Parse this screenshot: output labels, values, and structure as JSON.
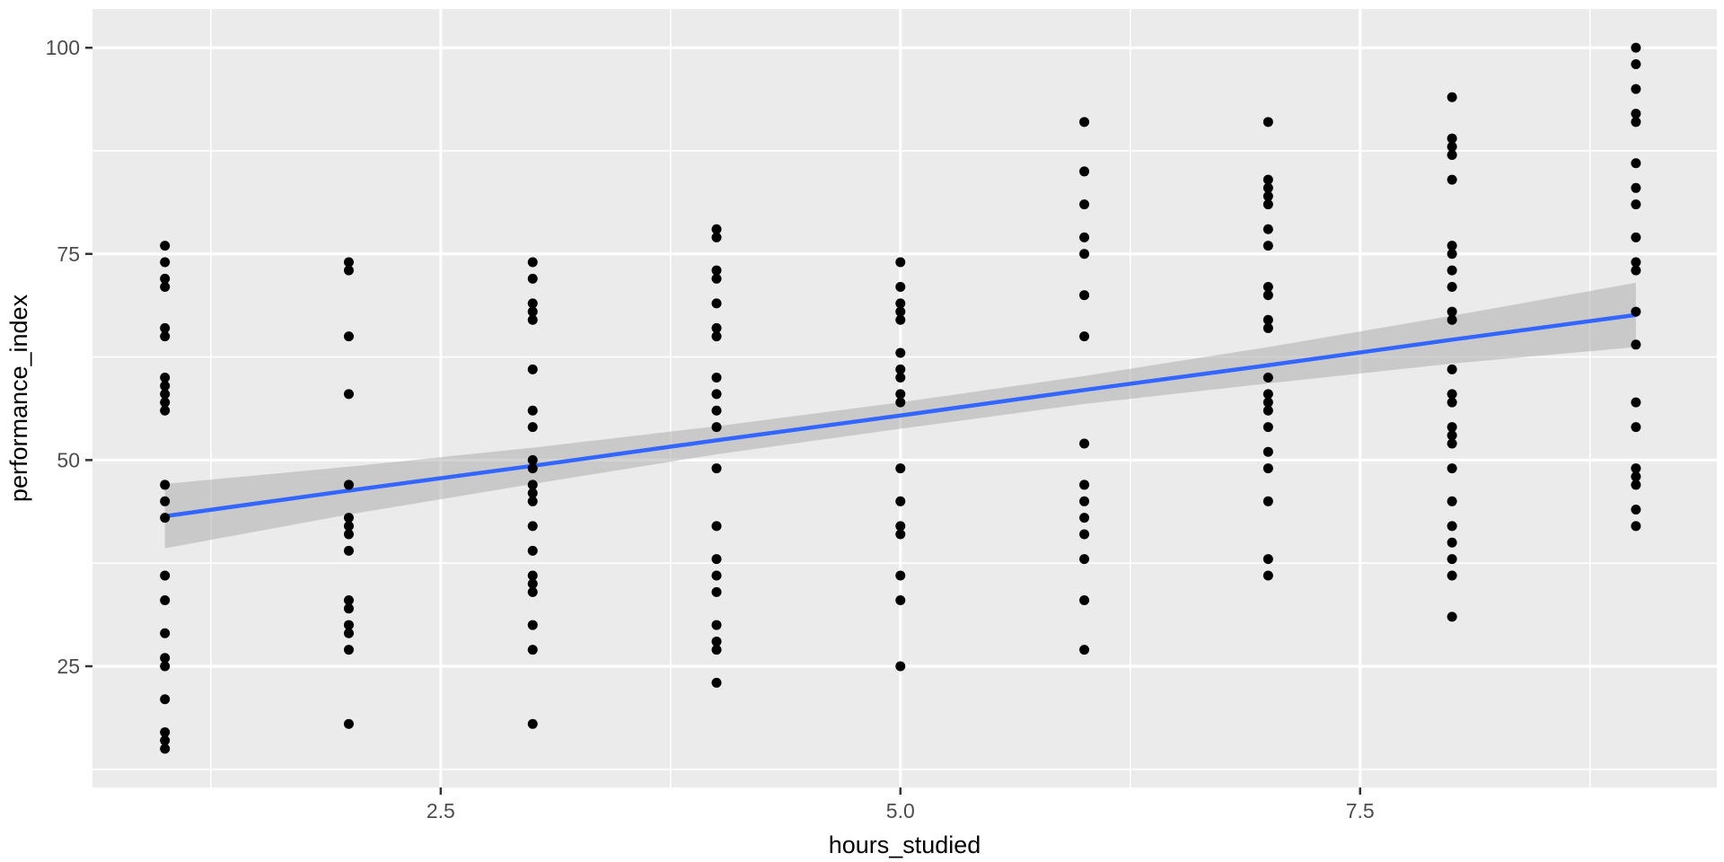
{
  "figure": {
    "kind": "ggplot-scatter-with-smooth",
    "background": "#FFFFFF"
  },
  "chart_data": {
    "type": "scatter",
    "title": "",
    "xlabel": "hours_studied",
    "ylabel": "performance_index",
    "xlim": [
      0.606,
      9.44
    ],
    "ylim": [
      10.3,
      104.7
    ],
    "x_major_ticks": [
      2.5,
      5.0,
      7.5
    ],
    "x_major_labels": [
      "2.5",
      "5.0",
      "7.5"
    ],
    "x_minor_ticks": [
      1.25,
      3.75,
      6.25,
      8.75
    ],
    "y_major_ticks": [
      25,
      50,
      75,
      100
    ],
    "y_major_labels": [
      "25",
      "50",
      "75",
      "100"
    ],
    "y_minor_ticks": [
      12.5,
      37.5,
      62.5,
      87.5
    ],
    "grid": "on",
    "legend": "none",
    "groups": [
      {
        "x": 1,
        "values": [
          76,
          74,
          72,
          71,
          66,
          65,
          60,
          59,
          58,
          57,
          56,
          47,
          45,
          43,
          36,
          33,
          29,
          26,
          25,
          21,
          17,
          16,
          15
        ]
      },
      {
        "x": 2,
        "values": [
          74,
          73,
          65,
          58,
          47,
          43,
          42,
          41,
          39,
          33,
          32,
          30,
          29,
          27,
          18
        ]
      },
      {
        "x": 3,
        "values": [
          74,
          72,
          69,
          68,
          67,
          61,
          56,
          54,
          50,
          49,
          47,
          46,
          45,
          42,
          39,
          36,
          35,
          34,
          30,
          27,
          18
        ]
      },
      {
        "x": 4,
        "values": [
          78,
          77,
          73,
          72,
          69,
          66,
          65,
          60,
          58,
          56,
          54,
          49,
          42,
          38,
          36,
          34,
          30,
          28,
          27,
          23
        ]
      },
      {
        "x": 5,
        "values": [
          74,
          71,
          69,
          68,
          67,
          63,
          61,
          60,
          58,
          57,
          49,
          45,
          42,
          41,
          36,
          33,
          25
        ]
      },
      {
        "x": 6,
        "values": [
          91,
          85,
          81,
          77,
          75,
          70,
          65,
          52,
          47,
          45,
          43,
          41,
          38,
          33,
          27
        ]
      },
      {
        "x": 7,
        "values": [
          91,
          84,
          83,
          82,
          81,
          78,
          76,
          71,
          70,
          67,
          66,
          60,
          58,
          57,
          56,
          54,
          51,
          49,
          45,
          38,
          36
        ]
      },
      {
        "x": 8,
        "values": [
          94,
          89,
          88,
          87,
          84,
          76,
          75,
          73,
          71,
          68,
          67,
          61,
          58,
          57,
          54,
          53,
          52,
          49,
          45,
          42,
          40,
          38,
          36,
          31
        ]
      },
      {
        "x": 9,
        "values": [
          100,
          98,
          95,
          92,
          91,
          86,
          83,
          81,
          77,
          74,
          73,
          68,
          64,
          57,
          54,
          49,
          48,
          47,
          44,
          42
        ]
      }
    ],
    "smooth_line": {
      "x": [
        1,
        2,
        3,
        4,
        5,
        6,
        7,
        8,
        9
      ],
      "y": [
        43.2,
        46.3,
        49.3,
        52.4,
        55.4,
        58.5,
        61.5,
        64.6,
        67.6
      ],
      "upper": [
        47.1,
        49.2,
        51.5,
        54.1,
        57.0,
        60.2,
        63.7,
        67.5,
        71.5
      ],
      "lower": [
        39.3,
        43.4,
        47.1,
        50.7,
        53.8,
        56.8,
        59.3,
        61.7,
        63.7
      ]
    },
    "colors": {
      "panel_background": "#EBEBEB",
      "grid_line": "#FFFFFF",
      "point": "#000000",
      "smooth_line": "#3366FF",
      "ribbon": "#A8A8A8",
      "ribbon_opacity": 0.5,
      "tick_label": "#4D4D4D",
      "axis_title": "#000000",
      "tick_mark": "#333333"
    }
  }
}
